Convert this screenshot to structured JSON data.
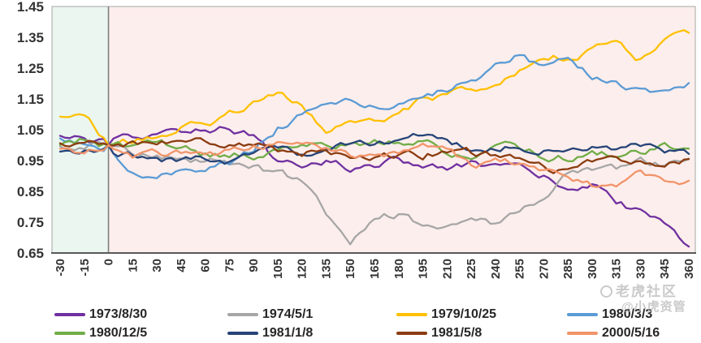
{
  "watermark": {
    "line1": "老虎社区",
    "line2": "@小虎资管"
  },
  "chart_data": {
    "type": "line",
    "title": "",
    "xlabel": "",
    "ylabel": "",
    "xlim": [
      -30,
      360
    ],
    "ylim": [
      0.65,
      1.45
    ],
    "x_ticks": [
      -30,
      -15,
      0,
      15,
      30,
      45,
      60,
      75,
      90,
      105,
      120,
      135,
      150,
      165,
      180,
      195,
      210,
      225,
      240,
      255,
      270,
      285,
      300,
      315,
      330,
      345,
      360
    ],
    "y_ticks": [
      1.45,
      1.35,
      1.25,
      1.15,
      1.05,
      0.95,
      0.85,
      0.75,
      0.65
    ],
    "grid": false,
    "legend_position": "bottom",
    "event_line_x": 0,
    "regions": [
      {
        "name": "pre-event",
        "from": -30,
        "to": 0,
        "color": "#EAF6EF"
      },
      {
        "name": "post-event",
        "from": 0,
        "to": 360,
        "color": "#FCEEEC"
      }
    ],
    "x_anchor_days": [
      -30,
      -15,
      0,
      15,
      30,
      45,
      60,
      75,
      90,
      105,
      120,
      135,
      150,
      165,
      180,
      195,
      210,
      225,
      240,
      255,
      270,
      285,
      300,
      315,
      330,
      345,
      360
    ],
    "series": [
      {
        "name": "1973/8/30",
        "color": "#7030A0",
        "values": [
          1.02,
          1.02,
          1.0,
          1.01,
          1.02,
          1.04,
          1.06,
          1.06,
          1.04,
          0.94,
          0.93,
          0.95,
          0.93,
          0.94,
          0.95,
          0.94,
          0.92,
          0.93,
          0.93,
          0.91,
          0.89,
          0.87,
          0.87,
          0.82,
          0.78,
          0.76,
          0.68
        ]
      },
      {
        "name": "1974/5/1",
        "color": "#A6A6A6",
        "values": [
          0.99,
          0.98,
          1.0,
          0.98,
          0.97,
          0.96,
          0.95,
          0.94,
          0.93,
          0.9,
          0.87,
          0.78,
          0.7,
          0.78,
          0.78,
          0.73,
          0.74,
          0.75,
          0.74,
          0.77,
          0.83,
          0.9,
          0.92,
          0.91,
          0.95,
          0.94,
          0.95
        ]
      },
      {
        "name": "1979/10/25",
        "color": "#FFC000",
        "values": [
          1.09,
          1.1,
          1.0,
          1.01,
          1.03,
          1.06,
          1.07,
          1.1,
          1.14,
          1.17,
          1.12,
          1.04,
          1.07,
          1.08,
          1.1,
          1.14,
          1.16,
          1.18,
          1.21,
          1.25,
          1.28,
          1.29,
          1.31,
          1.33,
          1.28,
          1.36,
          1.35
        ]
      },
      {
        "name": "1980/3/3",
        "color": "#5B9BD5",
        "values": [
          1.02,
          1.01,
          1.0,
          0.93,
          0.88,
          0.91,
          0.93,
          0.95,
          0.99,
          1.06,
          1.1,
          1.12,
          1.14,
          1.13,
          1.14,
          1.17,
          1.19,
          1.22,
          1.26,
          1.29,
          1.24,
          1.26,
          1.22,
          1.2,
          1.18,
          1.18,
          1.21
        ]
      },
      {
        "name": "1980/12/5",
        "color": "#70AD47",
        "values": [
          1.0,
          1.02,
          1.0,
          0.99,
          1.0,
          0.99,
          0.97,
          0.96,
          0.97,
          0.98,
          0.98,
          1.0,
          1.0,
          1.01,
          1.02,
          1.01,
          0.98,
          0.96,
          1.02,
          0.99,
          0.96,
          0.96,
          0.97,
          0.97,
          0.98,
          1.0,
          0.97
        ]
      },
      {
        "name": "1981/1/8",
        "color": "#264478",
        "values": [
          0.98,
          0.99,
          1.0,
          0.98,
          0.96,
          0.95,
          0.96,
          0.94,
          0.96,
          0.97,
          0.97,
          0.98,
          1.0,
          1.0,
          1.0,
          1.02,
          1.01,
          0.98,
          0.99,
          1.0,
          0.99,
          1.01,
          1.0,
          0.99,
          0.99,
          0.97,
          0.96
        ]
      },
      {
        "name": "1981/5/8",
        "color": "#8B3C10",
        "values": [
          1.0,
          1.01,
          1.0,
          1.0,
          1.01,
          1.0,
          1.01,
          1.0,
          1.01,
          0.99,
          0.98,
          0.99,
          0.97,
          0.96,
          0.97,
          0.97,
          0.99,
          0.97,
          0.96,
          0.95,
          0.92,
          0.91,
          0.93,
          0.93,
          0.95,
          0.95,
          0.96
        ]
      },
      {
        "name": "2000/5/16",
        "color": "#F1946A",
        "values": [
          0.98,
          0.96,
          1.0,
          0.95,
          0.96,
          0.97,
          0.98,
          0.98,
          0.99,
          1.0,
          0.99,
          0.97,
          0.96,
          0.97,
          0.98,
          0.99,
          1.0,
          0.94,
          0.95,
          0.94,
          0.91,
          0.88,
          0.86,
          0.85,
          0.89,
          0.88,
          0.87
        ]
      }
    ]
  }
}
